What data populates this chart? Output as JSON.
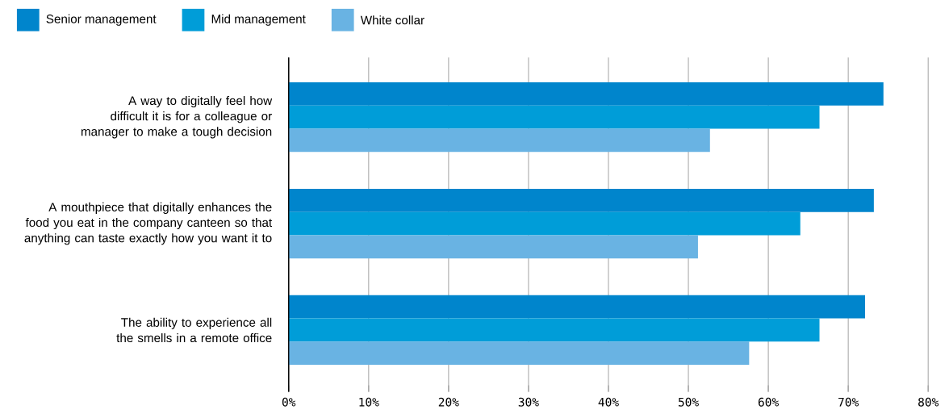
{
  "chart_data": {
    "type": "bar",
    "orientation": "horizontal",
    "categories": [
      "A way to digitally feel how difficult it is for a colleague or manager to make a tough decision",
      "A mouthpiece that digitally enhances the food you eat in the company canteen so that anything can taste exactly how you want it to",
      "The ability to experience all the smells in a remote office"
    ],
    "series": [
      {
        "name": "Senior management",
        "color": "#0085cc",
        "values": [
          74.4,
          73.2,
          72.1
        ]
      },
      {
        "name": "Mid management",
        "color": "#009dd8",
        "values": [
          66.4,
          64.0,
          66.4
        ]
      },
      {
        "name": "White collar",
        "color": "#69b3e3",
        "values": [
          52.7,
          51.2,
          57.6
        ]
      }
    ],
    "xlim": [
      0,
      80
    ],
    "xticks": [
      {
        "value": 0,
        "label": "0%"
      },
      {
        "value": 10,
        "label": "10%"
      },
      {
        "value": 20,
        "label": "20%"
      },
      {
        "value": 30,
        "label": "30%"
      },
      {
        "value": 40,
        "label": "40%"
      },
      {
        "value": 50,
        "label": "50%"
      },
      {
        "value": 60,
        "label": "60%"
      },
      {
        "value": 70,
        "label": "70%"
      },
      {
        "value": 80,
        "label": "80%"
      }
    ],
    "grid": "x",
    "legend": "top left"
  }
}
